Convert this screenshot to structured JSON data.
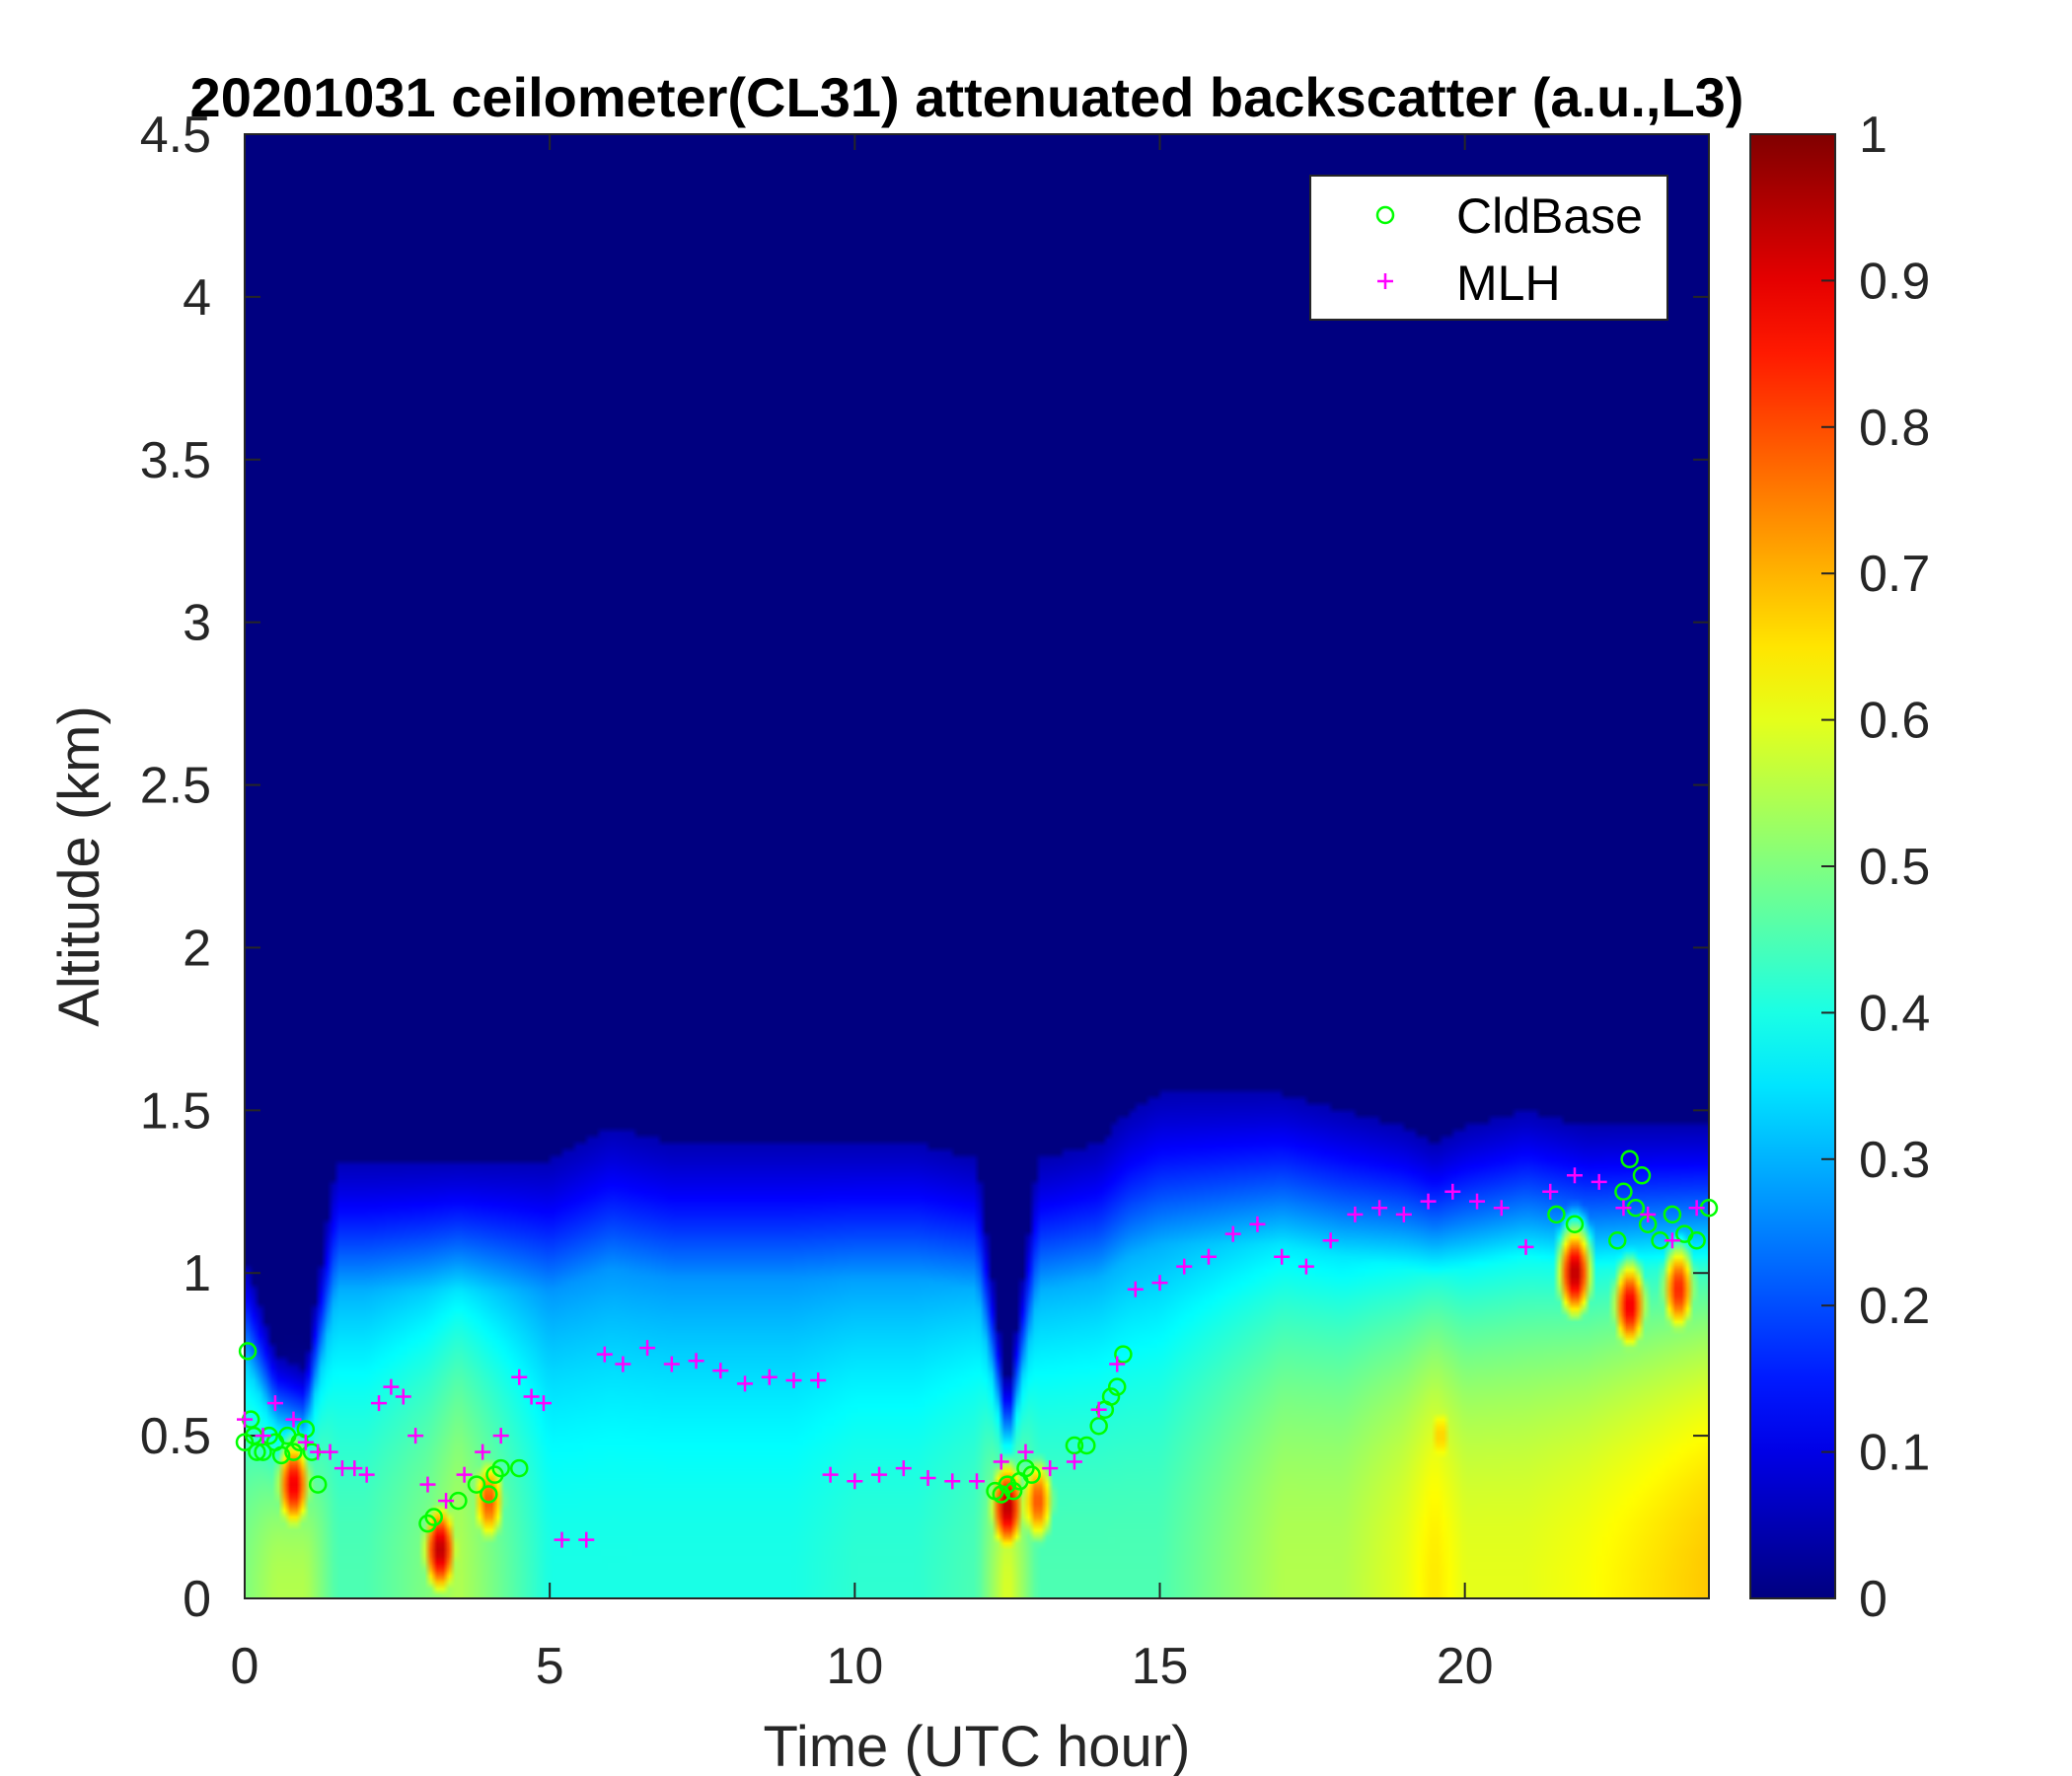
{
  "chart_data": {
    "type": "heatmap",
    "title": "20201031 ceilometer(CL31) attenuated backscatter (a.u.,L3)",
    "xlabel": "Time (UTC hour)",
    "ylabel": "Altitude (km)",
    "xlim": [
      0,
      24
    ],
    "ylim": [
      0,
      4.5
    ],
    "xticks": [
      0,
      5,
      10,
      15,
      20
    ],
    "yticks": [
      0,
      0.5,
      1,
      1.5,
      2,
      2.5,
      3,
      3.5,
      4,
      4.5
    ],
    "colorbar": {
      "colormap": "jet",
      "clim": [
        0,
        1
      ],
      "ticks": [
        0,
        0.1,
        0.2,
        0.3,
        0.4,
        0.5,
        0.6,
        0.7,
        0.8,
        0.9,
        1
      ]
    },
    "legend": {
      "placement": "top-right",
      "entries": [
        {
          "name": "CldBase",
          "marker": "circle",
          "color": "#00ff00"
        },
        {
          "name": "MLH",
          "marker": "plus",
          "color": "#ff00ff"
        }
      ]
    },
    "background_value": 0.0,
    "layer_profile": {
      "description_hours": [
        0,
        0.5,
        1,
        1.5,
        2,
        3,
        3.5,
        4,
        5,
        6,
        7,
        8,
        9,
        10,
        11,
        12,
        12.5,
        13,
        14,
        14.5,
        15,
        16,
        17,
        18,
        19,
        19.5,
        20,
        21,
        22,
        23,
        24
      ],
      "top_km": [
        1.05,
        0.75,
        0.7,
        1.35,
        1.35,
        1.35,
        1.35,
        1.35,
        1.35,
        1.45,
        1.4,
        1.4,
        1.4,
        1.4,
        1.4,
        1.35,
        0.6,
        1.35,
        1.4,
        1.5,
        1.55,
        1.55,
        1.55,
        1.5,
        1.45,
        1.4,
        1.45,
        1.5,
        1.45,
        1.45,
        1.45
      ],
      "low_value": [
        0.5,
        0.55,
        0.55,
        0.45,
        0.45,
        0.5,
        0.55,
        0.5,
        0.4,
        0.4,
        0.4,
        0.4,
        0.4,
        0.42,
        0.42,
        0.45,
        0.6,
        0.45,
        0.45,
        0.45,
        0.45,
        0.5,
        0.55,
        0.55,
        0.6,
        0.65,
        0.6,
        0.6,
        0.62,
        0.65,
        0.68
      ]
    },
    "hot_spots": [
      {
        "x": 0.8,
        "y": 0.35,
        "value": 0.9
      },
      {
        "x": 3.2,
        "y": 0.15,
        "value": 0.95
      },
      {
        "x": 4.0,
        "y": 0.3,
        "value": 0.8
      },
      {
        "x": 12.5,
        "y": 0.28,
        "value": 0.95
      },
      {
        "x": 13.0,
        "y": 0.3,
        "value": 0.8
      },
      {
        "x": 19.6,
        "y": 0.5,
        "value": 0.68
      },
      {
        "x": 21.8,
        "y": 1.0,
        "value": 0.95
      },
      {
        "x": 22.7,
        "y": 0.9,
        "value": 0.9
      },
      {
        "x": 23.5,
        "y": 0.95,
        "value": 0.85
      }
    ],
    "series": [
      {
        "name": "CldBase",
        "x": [
          0.0,
          0.05,
          0.1,
          0.15,
          0.2,
          0.3,
          0.4,
          0.5,
          0.6,
          0.7,
          0.8,
          0.9,
          1.0,
          1.1,
          1.2,
          3.0,
          3.1,
          3.5,
          3.8,
          4.0,
          4.1,
          4.2,
          4.5,
          12.3,
          12.4,
          12.5,
          12.6,
          12.7,
          12.8,
          12.9,
          13.6,
          13.8,
          14.0,
          14.1,
          14.2,
          14.3,
          14.4,
          21.5,
          21.8,
          22.5,
          22.6,
          22.7,
          22.8,
          22.9,
          23.0,
          23.2,
          23.4,
          23.6,
          23.8,
          24.0
        ],
        "y": [
          0.48,
          0.76,
          0.55,
          0.5,
          0.45,
          0.45,
          0.5,
          0.48,
          0.44,
          0.5,
          0.45,
          0.48,
          0.52,
          0.45,
          0.35,
          0.23,
          0.25,
          0.3,
          0.35,
          0.32,
          0.38,
          0.4,
          0.4,
          0.33,
          0.32,
          0.35,
          0.33,
          0.36,
          0.4,
          0.38,
          0.47,
          0.47,
          0.53,
          0.58,
          0.62,
          0.65,
          0.75,
          1.18,
          1.15,
          1.1,
          1.25,
          1.35,
          1.2,
          1.3,
          1.15,
          1.1,
          1.18,
          1.12,
          1.1,
          1.2
        ]
      },
      {
        "name": "MLH",
        "x": [
          0.0,
          0.3,
          0.5,
          0.8,
          1.0,
          1.2,
          1.4,
          1.6,
          1.8,
          2.0,
          2.2,
          2.4,
          2.6,
          2.8,
          3.0,
          3.3,
          3.6,
          3.9,
          4.2,
          4.5,
          4.7,
          4.9,
          5.2,
          5.6,
          5.9,
          6.2,
          6.6,
          7.0,
          7.4,
          7.8,
          8.2,
          8.6,
          9.0,
          9.4,
          9.6,
          10.0,
          10.4,
          10.8,
          11.2,
          11.6,
          12.0,
          12.4,
          12.8,
          13.2,
          13.6,
          14.0,
          14.3,
          14.6,
          15.0,
          15.4,
          15.8,
          16.2,
          16.6,
          17.0,
          17.4,
          17.8,
          18.2,
          18.6,
          19.0,
          19.4,
          19.8,
          20.2,
          20.6,
          21.0,
          21.4,
          21.8,
          22.2,
          22.6,
          23.0,
          23.4,
          23.8
        ],
        "y": [
          0.55,
          0.5,
          0.6,
          0.55,
          0.48,
          0.45,
          0.45,
          0.4,
          0.4,
          0.38,
          0.6,
          0.65,
          0.62,
          0.5,
          0.35,
          0.3,
          0.38,
          0.45,
          0.5,
          0.68,
          0.62,
          0.6,
          0.18,
          0.18,
          0.75,
          0.72,
          0.77,
          0.72,
          0.73,
          0.7,
          0.66,
          0.68,
          0.67,
          0.67,
          0.38,
          0.36,
          0.38,
          0.4,
          0.37,
          0.36,
          0.36,
          0.42,
          0.45,
          0.4,
          0.42,
          0.58,
          0.72,
          0.95,
          0.97,
          1.02,
          1.05,
          1.12,
          1.15,
          1.05,
          1.02,
          1.1,
          1.18,
          1.2,
          1.18,
          1.22,
          1.25,
          1.22,
          1.2,
          1.08,
          1.25,
          1.3,
          1.28,
          1.2,
          1.18,
          1.1,
          1.2
        ]
      }
    ]
  }
}
